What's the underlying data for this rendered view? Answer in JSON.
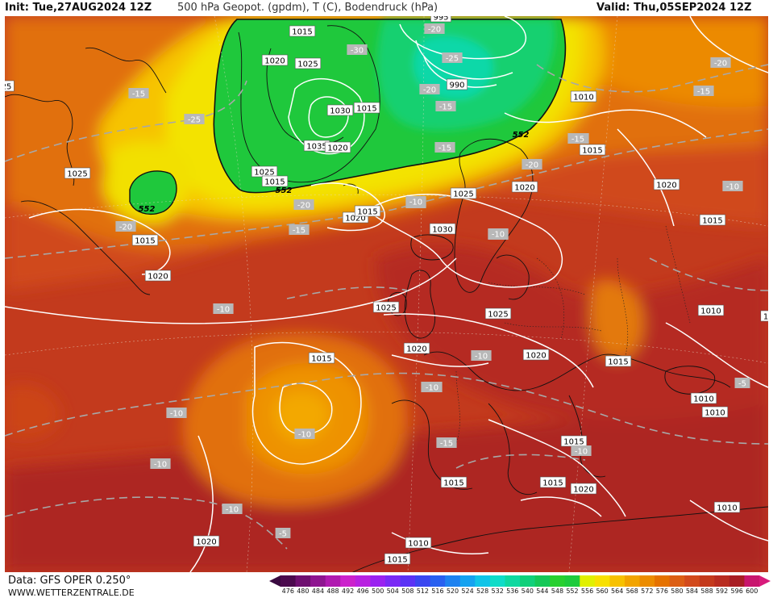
{
  "header": {
    "init": "Init: Tue,27AUG2024 12Z",
    "title": "500 hPa Geopot. (gpdm), T (C), Bodendruck (hPa)",
    "valid": "Valid: Thu,05SEP2024 12Z"
  },
  "footer": {
    "data_source": "Data: GFS OPER 0.250°",
    "website": "WWW.WETTERZENTRALE.DE"
  },
  "legend": {
    "values": [
      "476",
      "480",
      "484",
      "488",
      "492",
      "496",
      "500",
      "504",
      "508",
      "512",
      "516",
      "520",
      "524",
      "528",
      "532",
      "536",
      "540",
      "544",
      "548",
      "552",
      "556",
      "560",
      "564",
      "568",
      "572",
      "576",
      "580",
      "584",
      "588",
      "592",
      "596",
      "600"
    ],
    "colors": [
      "#4b0a4e",
      "#6e1070",
      "#8e1590",
      "#b01ab0",
      "#cc22cc",
      "#b822e0",
      "#9a22f0",
      "#7a2af5",
      "#5a32f5",
      "#3a46f0",
      "#2860f0",
      "#1e82f0",
      "#14a2f0",
      "#10c4e8",
      "#10dcc8",
      "#10d8a0",
      "#10d07a",
      "#14c858",
      "#28d030",
      "#1ecb3c",
      "#e0f000",
      "#f8e000",
      "#f7c100",
      "#f2a400",
      "#ec8c00",
      "#e57200",
      "#dc5e14",
      "#d24a1c",
      "#c43a1c",
      "#b82c20",
      "#a81e24",
      "#c8166e"
    ]
  },
  "pressure_labels": [
    "1015",
    "1020",
    "1025",
    "1030",
    "1015",
    "1035",
    "1020",
    "1025",
    "1015",
    "995",
    "990",
    "1010",
    "1015",
    "1025",
    "1020",
    "1020",
    "1025",
    "1015",
    "1020",
    "1015",
    "1030",
    "1025",
    "1020",
    "1025",
    "1020",
    "1015",
    "1010",
    "1015",
    "1020",
    "1015",
    "1015",
    "1010",
    "1010",
    "1015",
    "1010",
    "1015",
    "1020",
    "1010",
    "1015",
    "1020",
    "25",
    "1"
  ],
  "temperature_labels": [
    "-30",
    "-20",
    "-25",
    "-20",
    "-15",
    "-25",
    "-15",
    "-15",
    "-20",
    "-20",
    "-15",
    "-10",
    "-15",
    "-10",
    "-15",
    "-20",
    "-10",
    "-10",
    "-10",
    "-10",
    "-10",
    "-10",
    "-15",
    "-10",
    "-10",
    "-5",
    "-5",
    "-10",
    "-10",
    "-20",
    "-15",
    "-10",
    "-10",
    "-5"
  ],
  "geopotential_labels": [
    "552",
    "552",
    "552"
  ]
}
